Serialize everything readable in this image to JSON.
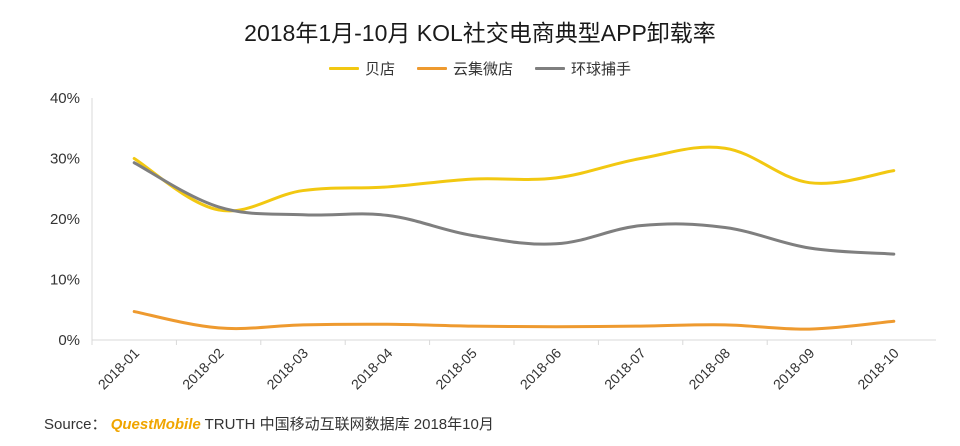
{
  "chart_data": {
    "type": "line",
    "title": "2018年1月-10月 KOL社交电商典型APP卸载率",
    "x": [
      "2018-01",
      "2018-02",
      "2018-03",
      "2018-04",
      "2018-05",
      "2018-06",
      "2018-07",
      "2018-08",
      "2018-09",
      "2018-10"
    ],
    "ylim": [
      0,
      40
    ],
    "yticks": [
      "0%",
      "10%",
      "20%",
      "30%",
      "40%"
    ],
    "xlabel": "",
    "ylabel": "",
    "grid": false,
    "legend_position": "top",
    "series": [
      {
        "name": "贝店",
        "color": "#f2c811",
        "values": [
          30.0,
          21.5,
          24.7,
          25.3,
          26.6,
          26.8,
          30.0,
          31.7,
          26.0,
          28.0
        ]
      },
      {
        "name": "云集微店",
        "color": "#ee9a2f",
        "values": [
          4.7,
          2.0,
          2.5,
          2.6,
          2.3,
          2.2,
          2.3,
          2.5,
          1.8,
          3.1
        ]
      },
      {
        "name": "环球捕手",
        "color": "#7f7f7f",
        "values": [
          29.3,
          22.0,
          20.7,
          20.6,
          17.3,
          15.9,
          18.9,
          18.6,
          15.2,
          14.2
        ]
      }
    ]
  },
  "source": {
    "prefix": "Source：",
    "brand": "QuestMobile",
    "text": "TRUTH 中国移动互联网数据库 2018年10月"
  }
}
